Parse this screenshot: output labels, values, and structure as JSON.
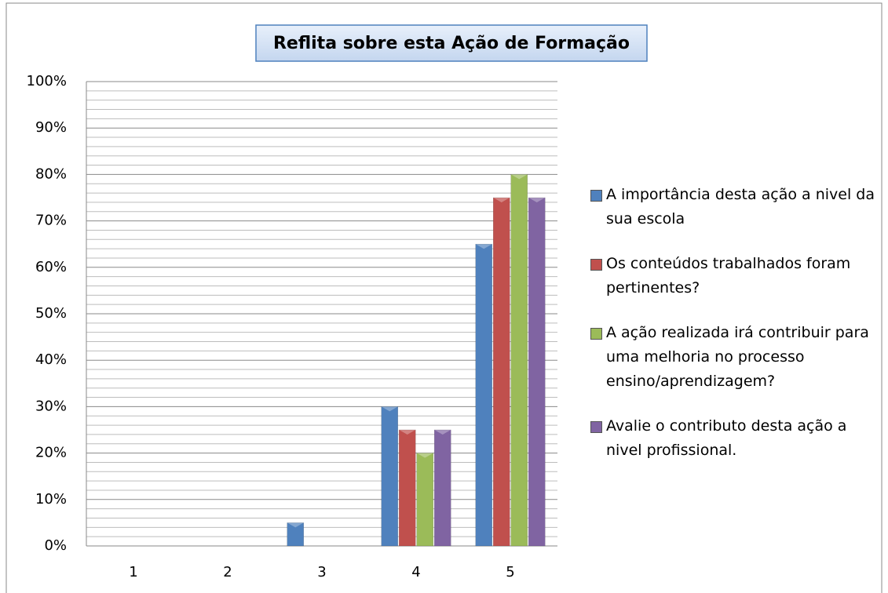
{
  "chart_data": {
    "type": "bar",
    "title": "Reflita sobre esta Ação de Formação",
    "categories": [
      "1",
      "2",
      "3",
      "4",
      "5"
    ],
    "series": [
      {
        "name": "A importância desta ação a nivel da sua escola",
        "color": "#4f81bd",
        "values": [
          0,
          0,
          5,
          30,
          65
        ]
      },
      {
        "name": "Os conteúdos trabalhados foram pertinentes?",
        "color": "#c0504d",
        "values": [
          0,
          0,
          0,
          25,
          75
        ]
      },
      {
        "name": "A ação realizada irá contribuir para uma melhoria no processo ensino/aprendizagem?",
        "color": "#9bbb59",
        "values": [
          0,
          0,
          0,
          20,
          80
        ]
      },
      {
        "name": "Avalie o contributo desta ação a nivel profissional.",
        "color": "#8064a2",
        "values": [
          0,
          0,
          0,
          25,
          75
        ]
      }
    ],
    "ylim": [
      0,
      100
    ],
    "yticks": [
      {
        "value": 0,
        "label": "0%"
      },
      {
        "value": 10,
        "label": "10%"
      },
      {
        "value": 20,
        "label": "20%"
      },
      {
        "value": 30,
        "label": "30%"
      },
      {
        "value": 40,
        "label": "40%"
      },
      {
        "value": 50,
        "label": "50%"
      },
      {
        "value": 60,
        "label": "60%"
      },
      {
        "value": 70,
        "label": "70%"
      },
      {
        "value": 80,
        "label": "80%"
      },
      {
        "value": 90,
        "label": "90%"
      },
      {
        "value": 100,
        "label": "100%"
      }
    ],
    "yminorticks": [
      2,
      4,
      6,
      8,
      12,
      14,
      16,
      18,
      22,
      24,
      26,
      28,
      32,
      34,
      36,
      38,
      42,
      44,
      46,
      48,
      52,
      54,
      56,
      58,
      62,
      64,
      66,
      68,
      72,
      74,
      76,
      78,
      82,
      84,
      86,
      88,
      92,
      94,
      96,
      98
    ],
    "grid": true,
    "legend": "right"
  }
}
